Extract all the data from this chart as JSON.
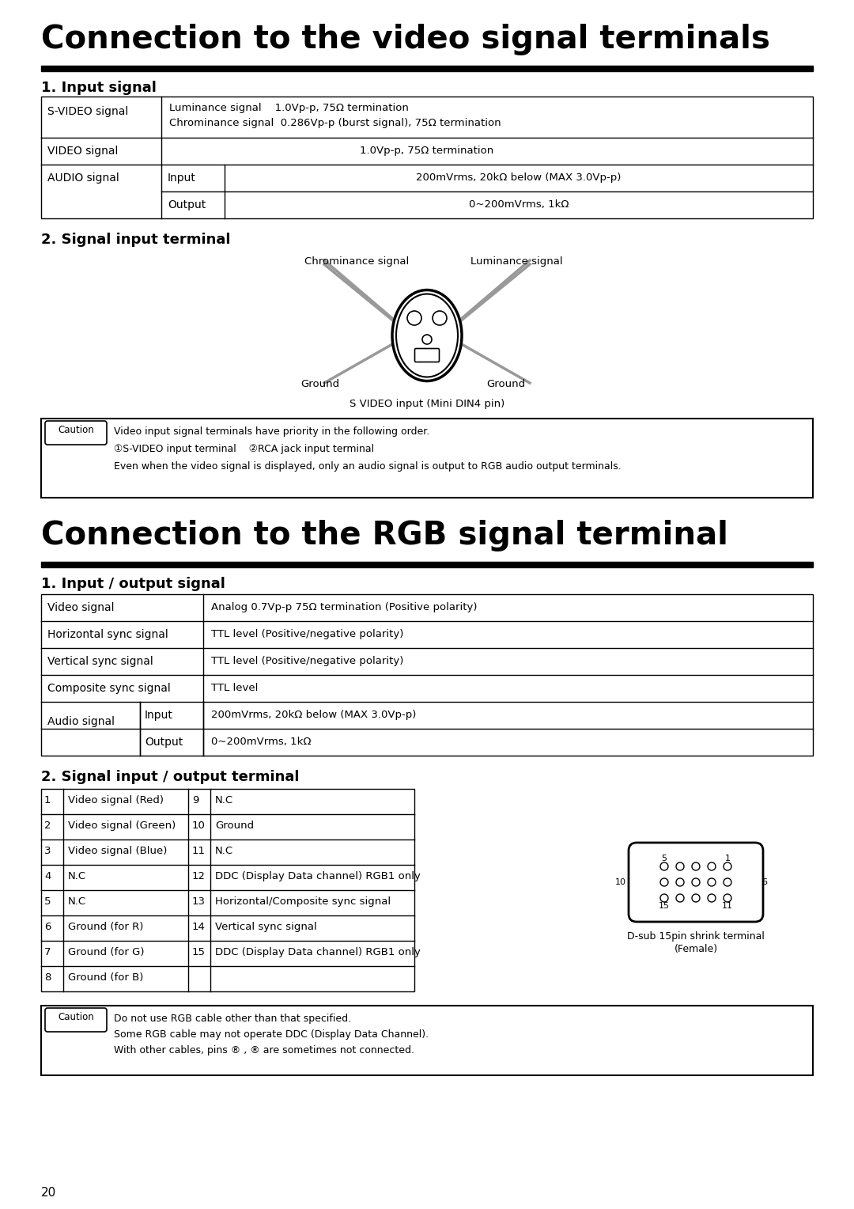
{
  "title1": "Connection to the video signal terminals",
  "title2": "Connection to the RGB signal terminal",
  "section1_heading": "1. Input signal",
  "section2_heading": "2. Signal input terminal",
  "section3_heading": "1. Input / output signal",
  "section4_heading": "2. Signal input / output terminal",
  "bg_color": "#ffffff",
  "table3_left": [
    [
      "1",
      "Video signal (Red)"
    ],
    [
      "2",
      "Video signal (Green)"
    ],
    [
      "3",
      "Video signal (Blue)"
    ],
    [
      "4",
      "N.C"
    ],
    [
      "5",
      "N.C"
    ],
    [
      "6",
      "Ground (for R)"
    ],
    [
      "7",
      "Ground (for G)"
    ],
    [
      "8",
      "Ground (for B)"
    ]
  ],
  "table3_right": [
    [
      "9",
      "N.C"
    ],
    [
      "10",
      "Ground"
    ],
    [
      "11",
      "N.C"
    ],
    [
      "12",
      "DDC (Display Data channel) RGB1 only"
    ],
    [
      "13",
      "Horizontal/Composite sync signal"
    ],
    [
      "14",
      "Vertical sync signal"
    ],
    [
      "15",
      "DDC (Display Data channel) RGB1 only"
    ]
  ],
  "page_number": "20"
}
